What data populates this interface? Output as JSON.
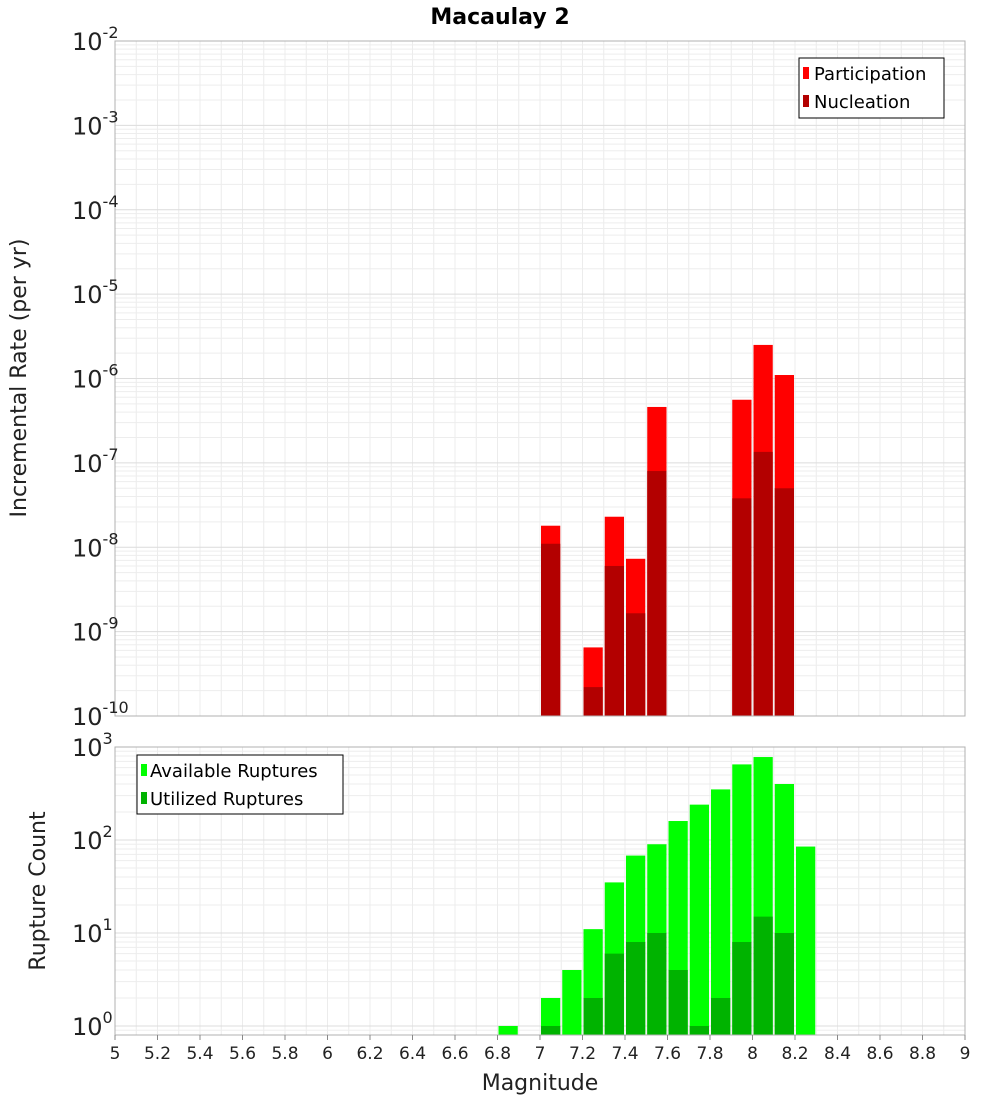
{
  "chart_data": {
    "title": "Macaulay 2",
    "xlabel": "Magnitude",
    "xlim": [
      5,
      9
    ],
    "xticks": [
      "5",
      "5.2",
      "5.4",
      "5.6",
      "5.8",
      "6",
      "6.2",
      "6.4",
      "6.6",
      "6.8",
      "7",
      "7.2",
      "7.4",
      "7.6",
      "7.8",
      "8",
      "8.2",
      "8.4",
      "8.6",
      "8.8",
      "9"
    ],
    "bin_width": 0.1,
    "grid": true,
    "panels": [
      {
        "type": "bar",
        "ylabel": "Incremental Rate (per yr)",
        "yscale": "log",
        "ylim": [
          1e-10,
          0.01
        ],
        "ytick_exponents": [
          "-10",
          "-9",
          "-8",
          "-7",
          "-6",
          "-5",
          "-4",
          "-3",
          "-2"
        ],
        "legend_position": "top-right",
        "series": [
          {
            "name": "Participation",
            "color": "#ff0000",
            "x": [
              7.05,
              7.25,
              7.35,
              7.45,
              7.55,
              7.95,
              8.05,
              8.15
            ],
            "values": [
              1.8e-08,
              6.5e-10,
              2.3e-08,
              7.3e-09,
              4.6e-07,
              5.6e-07,
              2.5e-06,
              1.1e-06
            ]
          },
          {
            "name": "Nucleation",
            "color": "#b30000",
            "x": [
              7.05,
              7.25,
              7.35,
              7.45,
              7.55,
              7.95,
              8.05,
              8.15
            ],
            "values": [
              1.1e-08,
              2.2e-10,
              6e-09,
              1.65e-09,
              8e-08,
              3.8e-08,
              1.35e-07,
              5e-08
            ]
          }
        ]
      },
      {
        "type": "bar",
        "ylabel": "Rupture Count",
        "yscale": "log",
        "ylim": [
          0.8,
          1000
        ],
        "ytick_exponents": [
          "0",
          "1",
          "2",
          "3"
        ],
        "legend_position": "top-left",
        "series": [
          {
            "name": "Available Ruptures",
            "color": "#00ff00",
            "x": [
              6.85,
              7.05,
              7.15,
              7.25,
              7.35,
              7.45,
              7.55,
              7.65,
              7.75,
              7.85,
              7.95,
              8.05,
              8.15,
              8.25
            ],
            "values": [
              1,
              2,
              4,
              11,
              35,
              68,
              90,
              160,
              240,
              350,
              650,
              780,
              400,
              85
            ]
          },
          {
            "name": "Utilized Ruptures",
            "color": "#00b300",
            "x": [
              7.05,
              7.25,
              7.35,
              7.45,
              7.55,
              7.65,
              7.75,
              7.85,
              7.95,
              8.05,
              8.15
            ],
            "values": [
              1,
              2,
              6,
              8,
              10,
              4,
              1,
              2,
              8,
              15,
              10
            ]
          }
        ]
      }
    ]
  }
}
